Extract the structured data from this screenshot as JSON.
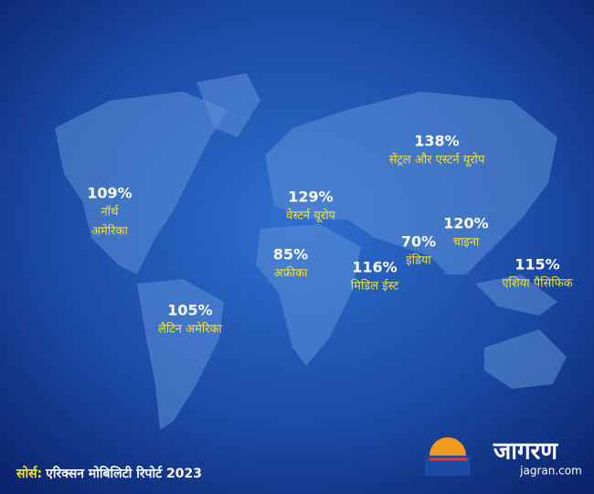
{
  "regions": [
    {
      "value": "109%",
      "name": [
        "नॉर्थ",
        "अमेरिका"
      ]
    },
    {
      "value": "105%",
      "name": [
        "लैटिन अमेरिका"
      ]
    },
    {
      "value": "129%",
      "name": [
        "वेस्टर्न यूरोप"
      ]
    },
    {
      "value": "85%",
      "name": [
        "अफ्रीका"
      ]
    },
    {
      "value": "116%",
      "name": [
        "मिडिल ईस्ट"
      ]
    },
    {
      "value": "70%",
      "name": [
        "इंडिया"
      ]
    },
    {
      "value": "120%",
      "name": [
        "चाइना"
      ]
    },
    {
      "value": "138%",
      "name": [
        "सेंट्रल और एस्टर्न यूरोप"
      ]
    },
    {
      "value": "115%",
      "name": [
        "एशिया पैसिफिक"
      ]
    }
  ],
  "source": {
    "label": "सोर्स:",
    "text": "एरिक्सन मोबिलिटी रिपोर्ट 2023"
  },
  "logo": {
    "name": "जागरण",
    "url": "jagran.com"
  }
}
